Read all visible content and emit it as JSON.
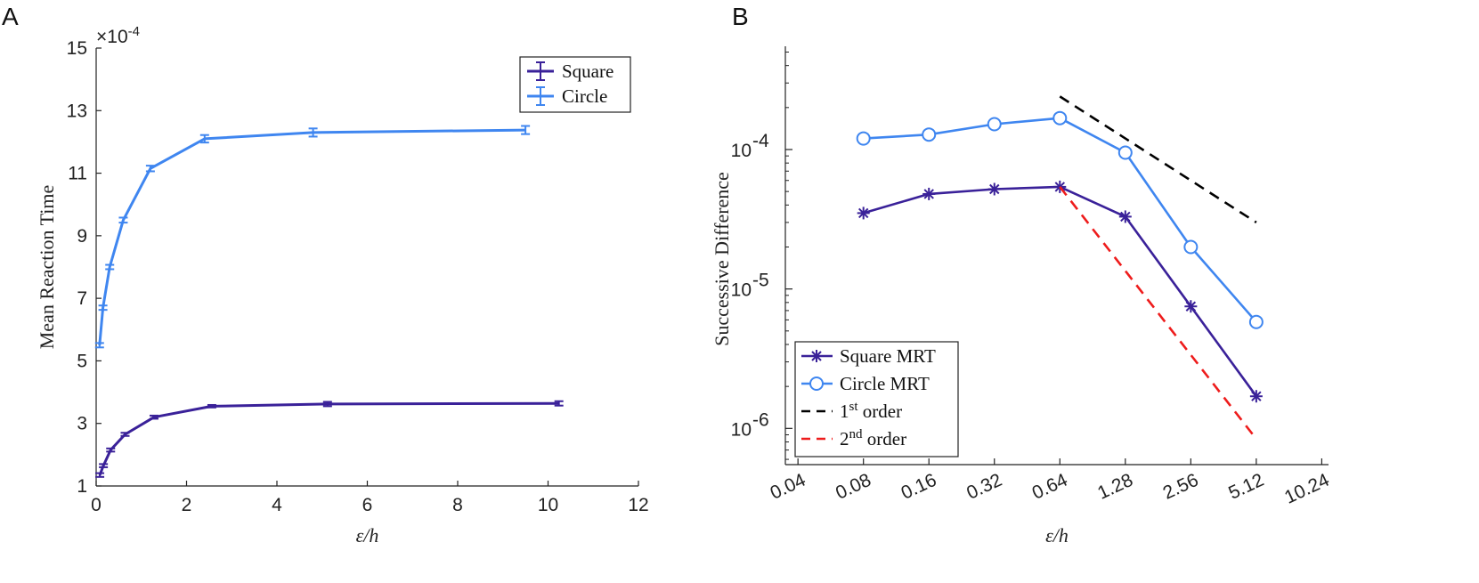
{
  "colors": {
    "square": "#3a2199",
    "circle": "#3f86f0",
    "first": "#000000",
    "second": "#ee1c1c",
    "axis": "#222222"
  },
  "panels": {
    "a": "A",
    "b": "B"
  },
  "chart_data": [
    {
      "type": "line",
      "panel": "A",
      "xlabel": "ε/h",
      "ylabel": "Mean Reaction Time",
      "y_multiplier": "×10",
      "y_exponent": "-4",
      "xlim": [
        0,
        12
      ],
      "ylim": [
        1,
        15
      ],
      "xticks": [
        0,
        2,
        4,
        6,
        8,
        10,
        12
      ],
      "yticks": [
        1,
        3,
        5,
        7,
        9,
        11,
        13,
        15
      ],
      "legend_position": "top-right",
      "series": [
        {
          "name": "Square",
          "color_key": "square",
          "x": [
            0.08,
            0.16,
            0.32,
            0.64,
            1.28,
            2.56,
            5.12,
            10.24
          ],
          "y": [
            1.35,
            1.65,
            2.15,
            2.65,
            3.2,
            3.55,
            3.62,
            3.64
          ],
          "err": [
            0.06,
            0.05,
            0.05,
            0.05,
            0.05,
            0.04,
            0.07,
            0.07
          ]
        },
        {
          "name": "Circle",
          "color_key": "circle",
          "x": [
            0.075,
            0.15,
            0.3,
            0.6,
            1.2,
            2.4,
            4.8,
            9.5
          ],
          "y": [
            5.5,
            6.7,
            8.0,
            9.5,
            11.15,
            12.1,
            12.3,
            12.38
          ],
          "err": [
            0.07,
            0.07,
            0.07,
            0.08,
            0.09,
            0.12,
            0.13,
            0.13
          ]
        }
      ]
    },
    {
      "type": "line",
      "panel": "B",
      "xscale": "log2",
      "yscale": "log10",
      "xlabel": "ε/h",
      "ylabel": "Successive Difference",
      "xticks": [
        0.04,
        0.08,
        0.16,
        0.32,
        0.64,
        1.28,
        2.56,
        5.12,
        10.24
      ],
      "xtick_labels": [
        "0.04",
        "0.08",
        "0.16",
        "0.32",
        "0.64",
        "1.28",
        "2.56",
        "5.12",
        "10.24"
      ],
      "yticks": [
        1e-06,
        1e-05,
        0.0001
      ],
      "ytick_labels": [
        {
          "base": "10",
          "exp": "-6"
        },
        {
          "base": "10",
          "exp": "-5"
        },
        {
          "base": "10",
          "exp": "-4"
        }
      ],
      "xlim": [
        0.035,
        11.0
      ],
      "ylim": [
        5.5e-07,
        0.00055
      ],
      "legend_position": "bottom-left",
      "series": [
        {
          "name": "Square MRT",
          "color_key": "square",
          "marker": "asterisk",
          "style": "solid",
          "x": [
            0.08,
            0.16,
            0.32,
            0.64,
            1.28,
            2.56,
            5.12
          ],
          "y": [
            3.5e-05,
            4.8e-05,
            5.2e-05,
            5.4e-05,
            3.3e-05,
            7.5e-06,
            1.7e-06
          ]
        },
        {
          "name": "Circle MRT",
          "color_key": "circle",
          "marker": "circle",
          "style": "solid",
          "x": [
            0.08,
            0.16,
            0.32,
            0.64,
            1.28,
            2.56,
            5.12
          ],
          "y": [
            0.00012,
            0.000128,
            0.000152,
            0.000168,
            9.5e-05,
            2e-05,
            5.8e-06
          ]
        },
        {
          "name": "1st order",
          "label_base": "1",
          "label_sup": "st",
          "label_rest": " order",
          "color_key": "first",
          "marker": "none",
          "style": "dashed",
          "x": [
            0.64,
            5.12
          ],
          "y": [
            0.00024,
            3e-05
          ]
        },
        {
          "name": "2nd order",
          "label_base": "2",
          "label_sup": "nd",
          "label_rest": " order",
          "color_key": "second",
          "marker": "none",
          "style": "dashed",
          "x": [
            0.64,
            5.12
          ],
          "y": [
            5.4e-05,
            8.4e-07
          ]
        }
      ]
    }
  ]
}
